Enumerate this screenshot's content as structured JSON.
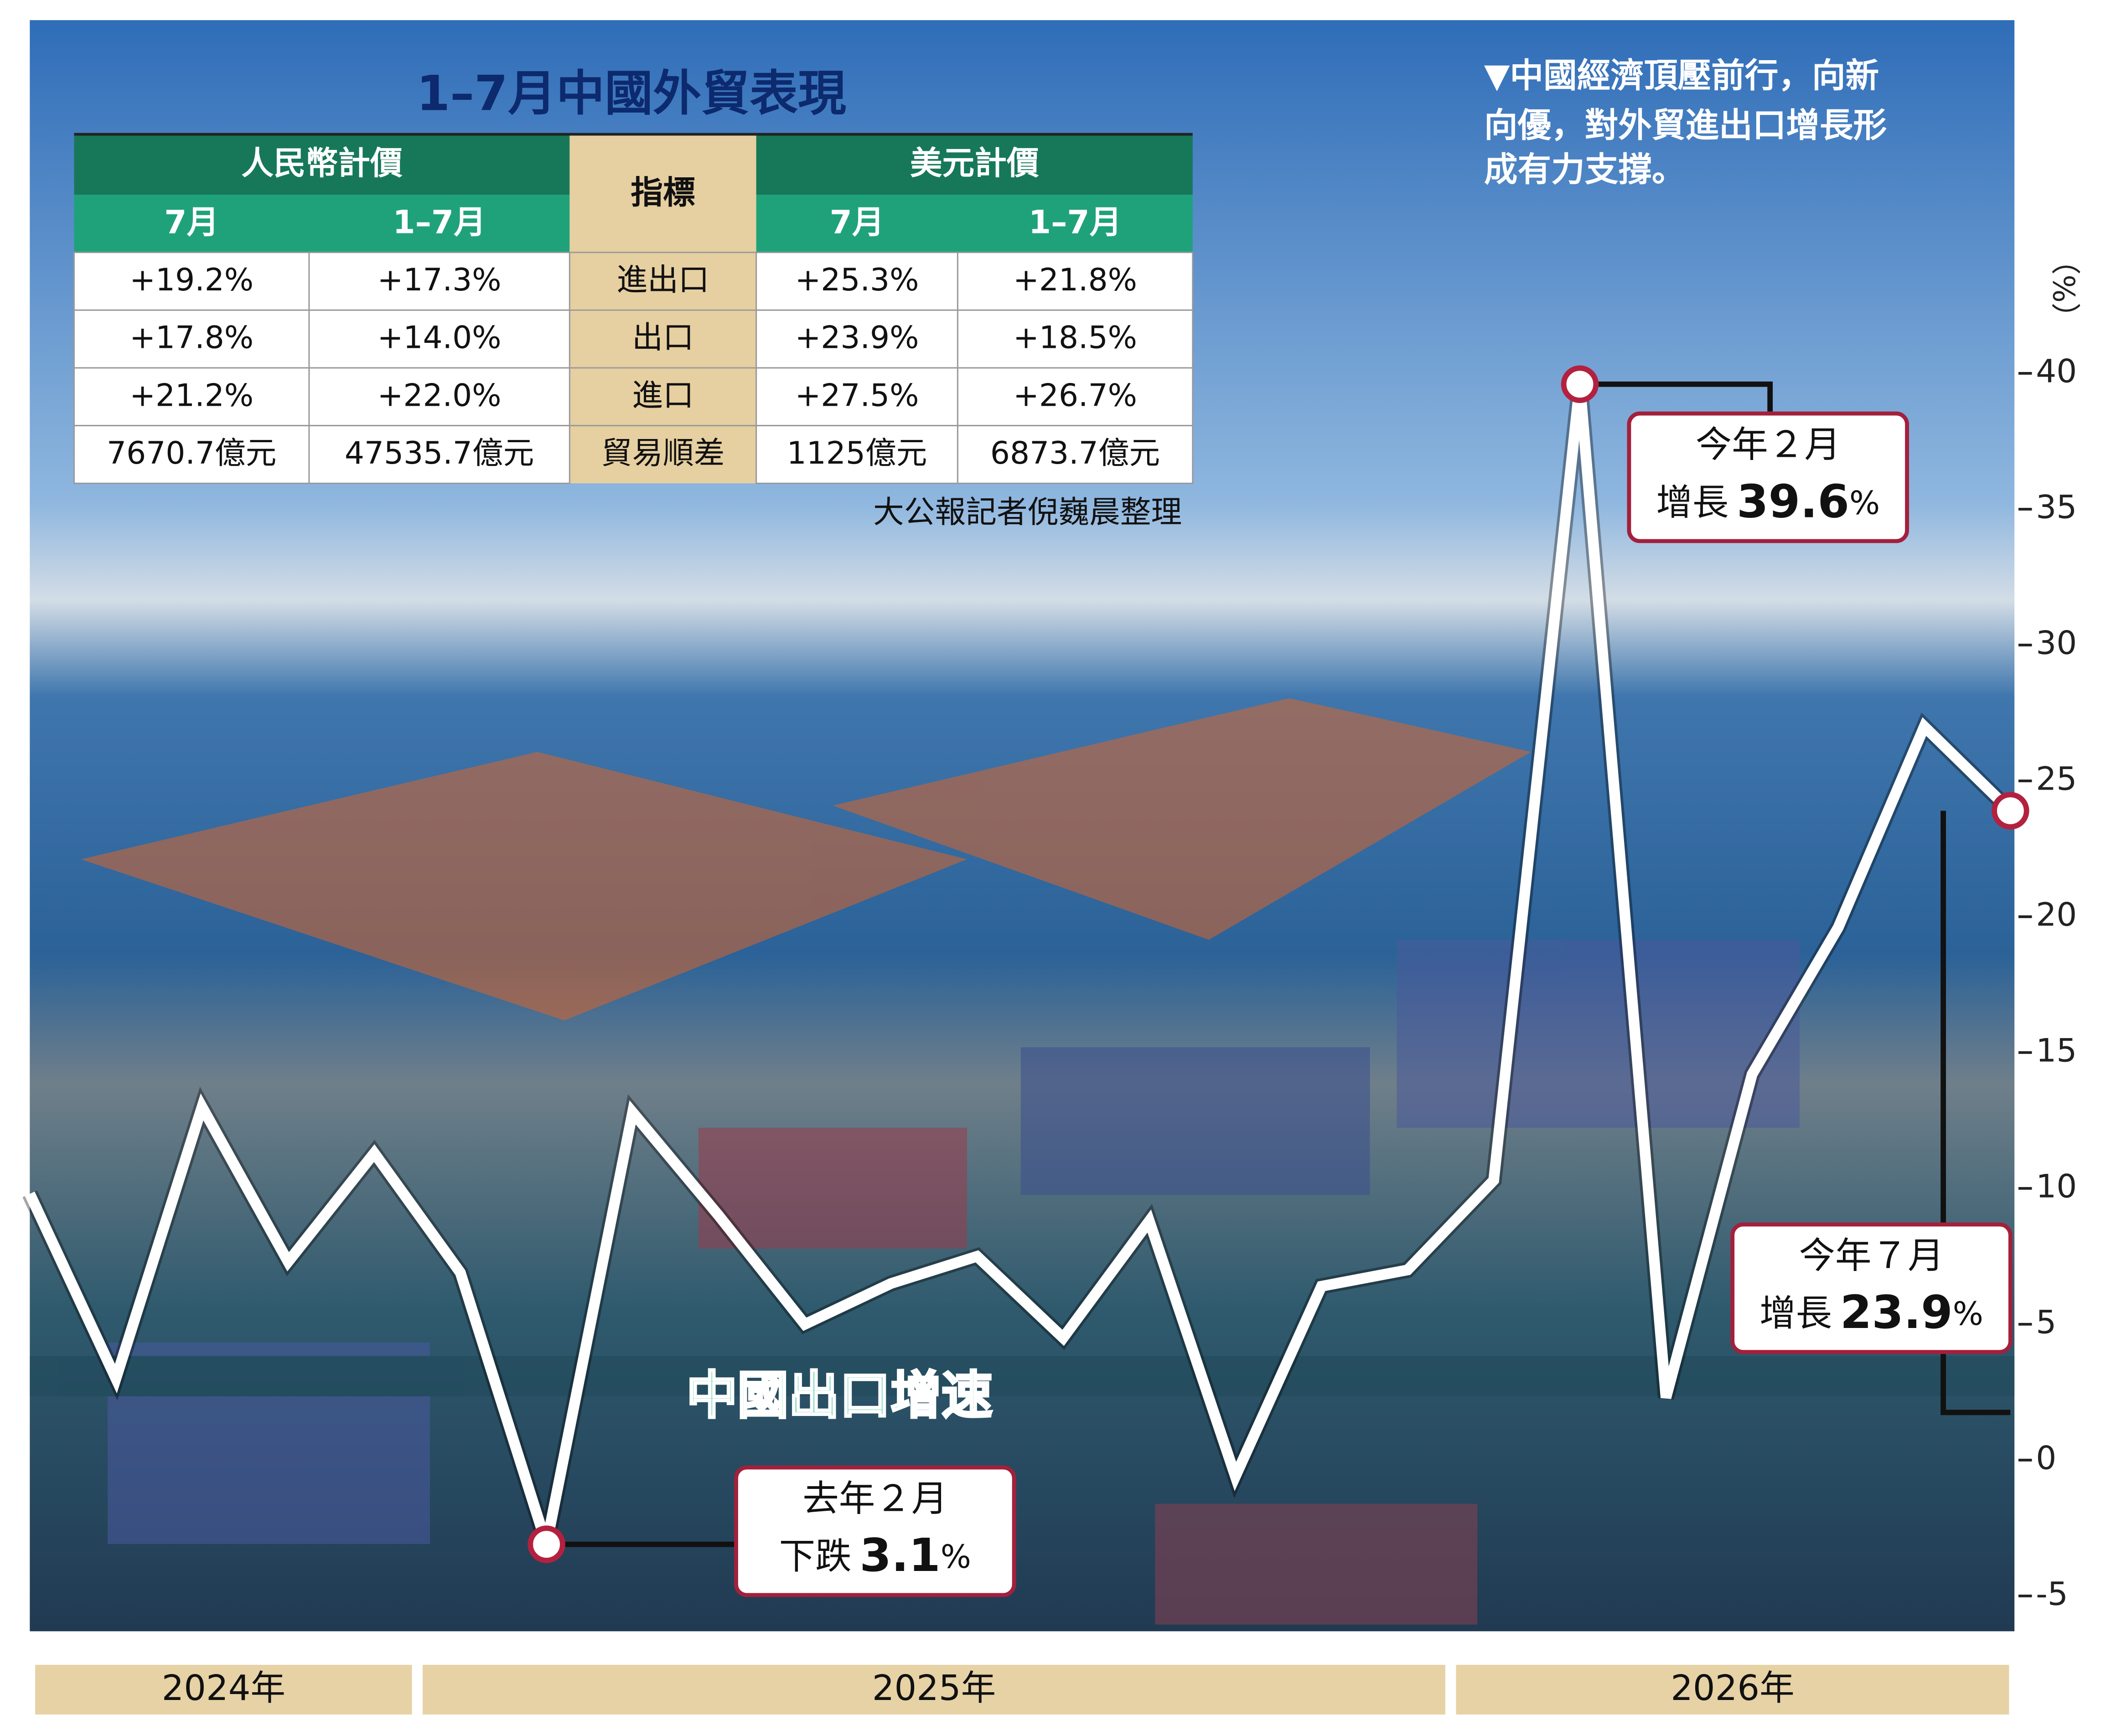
{
  "chart_data": {
    "type": "line",
    "title": "1–7月中國外貿表現",
    "caption": [
      "▼中國經濟頂壓前行，向新",
      "向優，對外貿進出口增長形",
      "成有力支撐。"
    ],
    "source": "大公報記者倪巍晨整理",
    "y_label": "（%）",
    "categories": [
      null,
      null,
      null,
      null,
      null,
      null,
      null,
      null,
      null,
      null,
      null,
      null,
      null,
      null,
      null,
      null,
      null,
      null,
      null,
      null,
      null,
      null,
      null,
      null
    ],
    "year_groups": [
      {
        "label": "2024年",
        "months": 5
      },
      {
        "label": "2025年",
        "months": 12
      },
      {
        "label": "2026年",
        "months": 7
      }
    ],
    "series": [
      {
        "name": "中國出口增速",
        "color": "#ffffff",
        "values": [
          9.8,
          3.0,
          13.0,
          7.3,
          11.3,
          6.9,
          -3.1,
          12.8,
          9.0,
          5.0,
          6.5,
          7.5,
          4.5,
          8.8,
          -0.6,
          6.4,
          7.0,
          10.3,
          39.6,
          2.3,
          14.2,
          19.6,
          27.0,
          23.9
        ]
      }
    ],
    "ylim": [
      -6.3,
      53
    ],
    "yticks": [
      -5,
      0,
      5,
      10,
      15,
      20,
      25,
      30,
      35,
      40
    ],
    "annotations": [
      {
        "line1": "去年２月",
        "line2": "下跌",
        "figure": "3.1",
        "unit": "%"
      },
      {
        "line1": "今年２月",
        "line2": "增長",
        "figure": "39.6",
        "unit": "%"
      },
      {
        "line1": "今年７月",
        "line2": "增長",
        "figure": "23.9",
        "unit": "%"
      }
    ]
  },
  "table": {
    "header_top": [
      "人民幣計價",
      "指標",
      "美元計價"
    ],
    "header_sub": [
      "7月",
      "1–7月",
      "7月",
      "1–7月"
    ],
    "rows": [
      [
        "+19.2%",
        "+17.3%",
        "進出口",
        "+25.3%",
        "+21.8%"
      ],
      [
        "+17.8%",
        "+14.0%",
        "出口",
        "+23.9%",
        "+18.5%"
      ],
      [
        "+21.2%",
        "+22.0%",
        "進口",
        "+27.5%",
        "+26.7%"
      ],
      [
        "7670.7億元",
        "47535.7億元",
        "貿易順差",
        "1125億元",
        "6873.7億元"
      ]
    ]
  }
}
